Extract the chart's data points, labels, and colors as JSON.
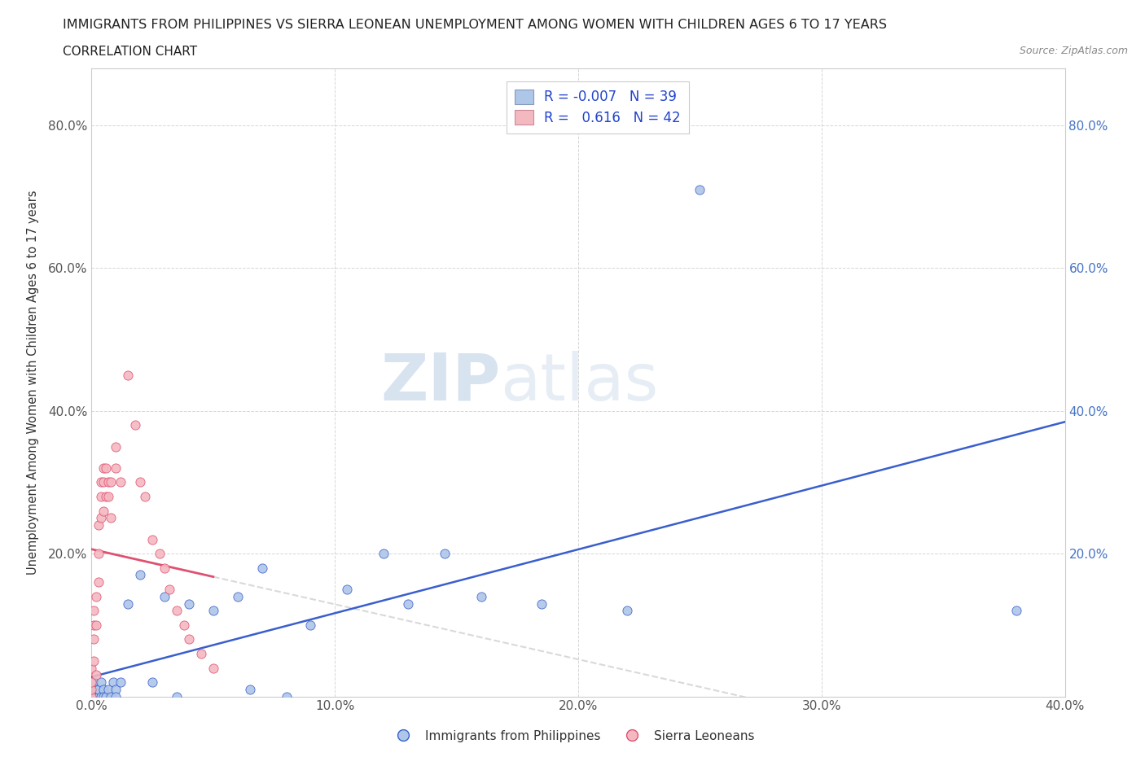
{
  "title": "IMMIGRANTS FROM PHILIPPINES VS SIERRA LEONEAN UNEMPLOYMENT AMONG WOMEN WITH CHILDREN AGES 6 TO 17 YEARS",
  "subtitle": "CORRELATION CHART",
  "source": "Source: ZipAtlas.com",
  "ylabel": "Unemployment Among Women with Children Ages 6 to 17 years",
  "xlim": [
    0.0,
    0.4
  ],
  "ylim": [
    0.0,
    0.88
  ],
  "watermark": "ZIPatlas",
  "philippines_color": "#aec6e8",
  "sierra_color": "#f4b8c1",
  "philippines_line_color": "#3a5fcd",
  "sierra_line_color": "#e05070",
  "background_color": "#ffffff",
  "grid_color": "#cccccc",
  "title_color": "#222222",
  "watermark_color": "#c8d8f0",
  "phil_R": -0.007,
  "phil_N": 39,
  "sier_R": 0.616,
  "sier_N": 42,
  "philippines_x": [
    0.0,
    0.001,
    0.001,
    0.002,
    0.002,
    0.003,
    0.003,
    0.004,
    0.004,
    0.005,
    0.005,
    0.006,
    0.007,
    0.008,
    0.009,
    0.01,
    0.01,
    0.012,
    0.015,
    0.02,
    0.025,
    0.03,
    0.035,
    0.04,
    0.05,
    0.06,
    0.065,
    0.07,
    0.08,
    0.09,
    0.105,
    0.12,
    0.13,
    0.145,
    0.16,
    0.185,
    0.22,
    0.25,
    0.38
  ],
  "philippines_y": [
    0.01,
    0.0,
    0.02,
    0.0,
    0.01,
    0.0,
    0.01,
    0.0,
    0.02,
    0.01,
    0.0,
    0.0,
    0.01,
    0.0,
    0.02,
    0.01,
    0.0,
    0.02,
    0.13,
    0.17,
    0.02,
    0.14,
    0.0,
    0.13,
    0.12,
    0.14,
    0.01,
    0.18,
    0.0,
    0.1,
    0.15,
    0.2,
    0.13,
    0.2,
    0.14,
    0.13,
    0.12,
    0.71,
    0.12
  ],
  "sierra_x": [
    0.0,
    0.0,
    0.0,
    0.0,
    0.001,
    0.001,
    0.001,
    0.001,
    0.002,
    0.002,
    0.002,
    0.003,
    0.003,
    0.003,
    0.004,
    0.004,
    0.004,
    0.005,
    0.005,
    0.005,
    0.006,
    0.006,
    0.007,
    0.007,
    0.008,
    0.008,
    0.01,
    0.01,
    0.012,
    0.015,
    0.018,
    0.02,
    0.022,
    0.025,
    0.028,
    0.03,
    0.032,
    0.035,
    0.038,
    0.04,
    0.045,
    0.05
  ],
  "sierra_y": [
    0.0,
    0.01,
    0.02,
    0.04,
    0.05,
    0.08,
    0.1,
    0.12,
    0.03,
    0.1,
    0.14,
    0.16,
    0.2,
    0.24,
    0.25,
    0.28,
    0.3,
    0.26,
    0.3,
    0.32,
    0.28,
    0.32,
    0.28,
    0.3,
    0.25,
    0.3,
    0.32,
    0.35,
    0.3,
    0.45,
    0.38,
    0.3,
    0.28,
    0.22,
    0.2,
    0.18,
    0.15,
    0.12,
    0.1,
    0.08,
    0.06,
    0.04
  ]
}
